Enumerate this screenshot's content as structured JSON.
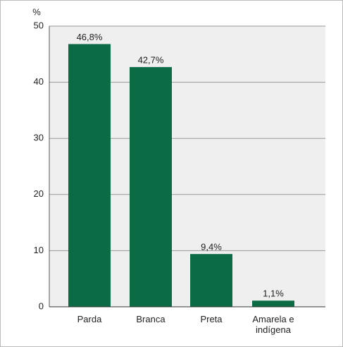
{
  "chart_data": {
    "type": "bar",
    "y_label": "%",
    "categories": [
      "Parda",
      "Branca",
      "Preta",
      "Amarela e indígena"
    ],
    "values": [
      46.8,
      42.7,
      9.4,
      1.1
    ],
    "value_labels": [
      "46,8%",
      "42,7%",
      "9,4%",
      "1,1%"
    ],
    "color": "#0b6b45",
    "ylim": [
      0,
      50
    ],
    "yticks": [
      0,
      10,
      20,
      30,
      40,
      50
    ],
    "grid": true
  }
}
